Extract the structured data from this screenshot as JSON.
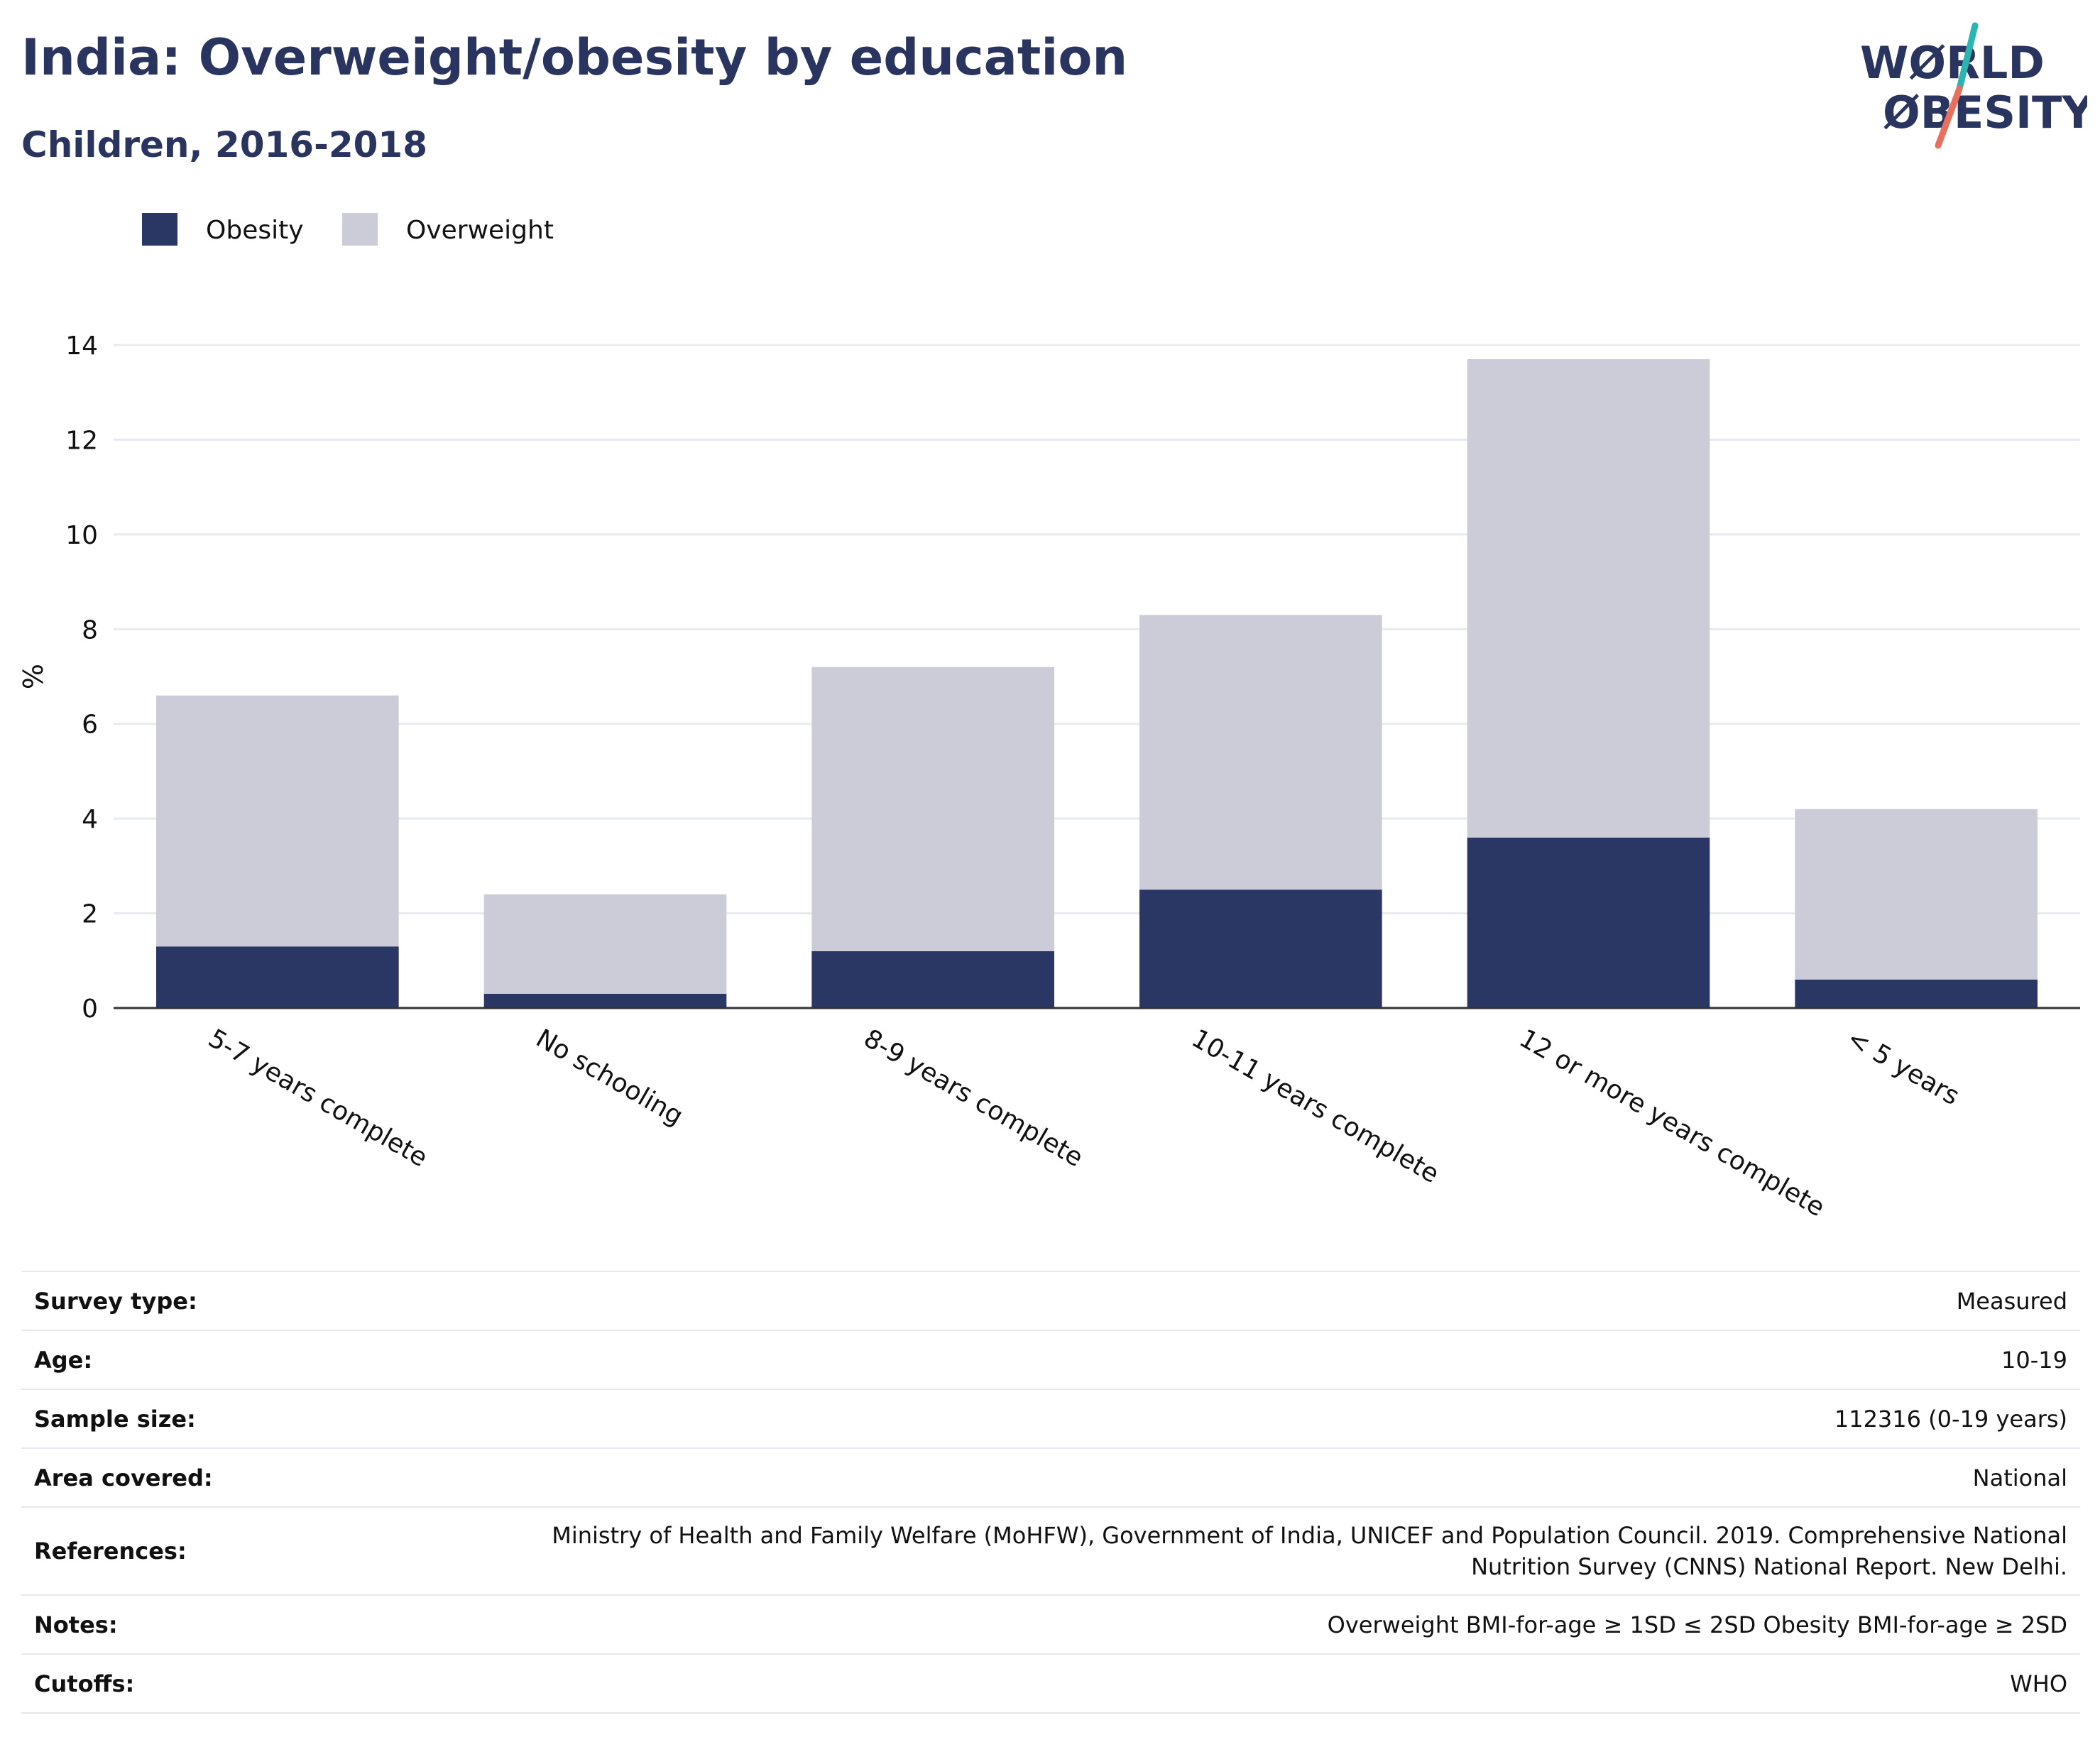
{
  "header": {
    "title": "India: Overweight/obesity by education",
    "subtitle": "Children, 2016-2018"
  },
  "logo": {
    "line1": "WØRLD",
    "line2": "ØBESITY",
    "accent_top": "#2bb4b0",
    "accent_bottom": "#e8705f"
  },
  "colors": {
    "obesity": "#2a3663",
    "overweight": "#cbccd8",
    "grid": "#e7eaee",
    "axis": "#333333"
  },
  "chart_data": {
    "type": "bar",
    "stacked": true,
    "categories": [
      "5-7 years complete",
      "No schooling",
      "8-9 years complete",
      "10-11 years complete",
      "12 or more years complete",
      "< 5 years"
    ],
    "series": [
      {
        "name": "Obesity",
        "values": [
          1.3,
          0.3,
          1.2,
          2.5,
          3.6,
          0.6
        ]
      },
      {
        "name": "Overweight",
        "values": [
          5.3,
          2.1,
          6.0,
          5.8,
          10.1,
          3.6
        ]
      }
    ],
    "ylabel": "%",
    "xlabel": "",
    "ylim": [
      0,
      14
    ],
    "yticks": [
      0,
      2,
      4,
      6,
      8,
      10,
      12,
      14
    ],
    "grid": true,
    "legend_position": "top-left"
  },
  "metadata": {
    "rows": [
      {
        "key": "Survey type:",
        "value": "Measured"
      },
      {
        "key": "Age:",
        "value": "10-19"
      },
      {
        "key": "Sample size:",
        "value": "112316 (0-19 years)"
      },
      {
        "key": "Area covered:",
        "value": "National"
      },
      {
        "key": "References:",
        "value": "Ministry of Health and Family Welfare (MoHFW), Government of India, UNICEF and Population Council. 2019. Comprehensive National Nutrition Survey (CNNS) National Report. New Delhi."
      },
      {
        "key": "Notes:",
        "value": "Overweight BMI-for-age ≥ 1SD ≤ 2SD Obesity BMI-for-age ≥ 2SD"
      },
      {
        "key": "Cutoffs:",
        "value": "WHO"
      }
    ]
  }
}
